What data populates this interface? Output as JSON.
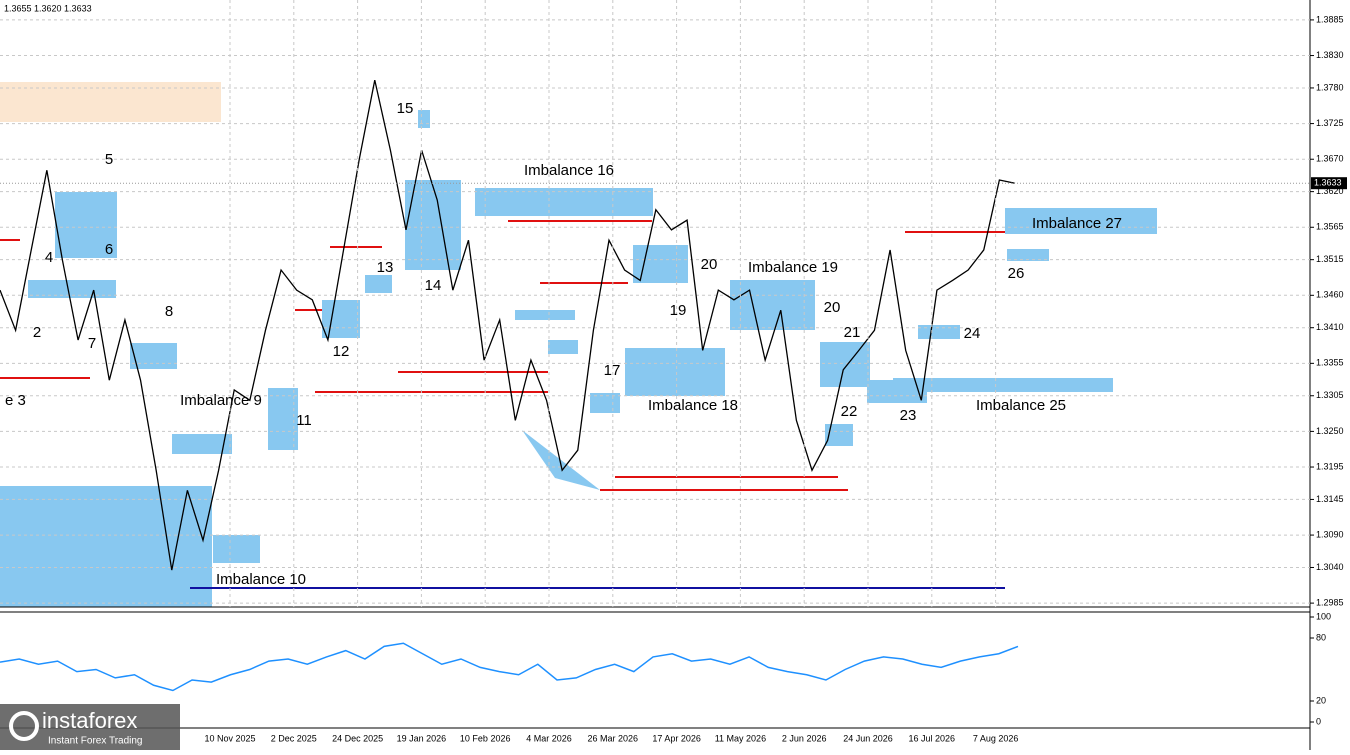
{
  "header": {
    "ohlc": "1.3655 1.3620 1.3633"
  },
  "logo": {
    "name": "instaforex",
    "tagline": "Instant Forex Trading"
  },
  "chart_data": [
    {
      "type": "line",
      "current_price": "1.3633",
      "series": [
        {
          "name": "Price",
          "color": "#000000",
          "values": [
            1.3468,
            1.3406,
            1.353,
            1.3653,
            1.3514,
            1.3391,
            1.3468,
            1.3329,
            1.3422,
            1.3329,
            1.319,
            1.3036,
            1.3159,
            1.3082,
            1.319,
            1.3314,
            1.3298,
            1.3406,
            1.3499,
            1.3468,
            1.3453,
            1.3391,
            1.353,
            1.3669,
            1.3792,
            1.3684,
            1.3561,
            1.3684,
            1.3607,
            1.3468,
            1.3545,
            1.336,
            1.3422,
            1.3267,
            1.336,
            1.3298,
            1.319,
            1.3221,
            1.3406,
            1.3545,
            1.3499,
            1.3483,
            1.3592,
            1.3561,
            1.3576,
            1.3375,
            1.3468,
            1.3453,
            1.3468,
            1.336,
            1.3437,
            1.3267,
            1.319,
            1.3236,
            1.3345,
            1.3375,
            1.3406,
            1.353,
            1.3375,
            1.3298,
            1.3468,
            1.3483,
            1.3499,
            1.353,
            1.3638,
            1.3633
          ]
        }
      ],
      "ylim": [
        1.2979,
        1.3908
      ],
      "yticks": [
        {
          "value": 1.3885,
          "label": "1.3885"
        },
        {
          "value": 1.383,
          "label": "1.3830"
        },
        {
          "value": 1.378,
          "label": "1.3780"
        },
        {
          "value": 1.3725,
          "label": "1.3725"
        },
        {
          "value": 1.367,
          "label": "1.3670"
        },
        {
          "value": 1.362,
          "label": "1.3620"
        },
        {
          "value": 1.3565,
          "label": "1.3565"
        },
        {
          "value": 1.3515,
          "label": "1.3515"
        },
        {
          "value": 1.346,
          "label": "1.3460"
        },
        {
          "value": 1.341,
          "label": "1.3410"
        },
        {
          "value": 1.3355,
          "label": "1.3355"
        },
        {
          "value": 1.3305,
          "label": "1.3305"
        },
        {
          "value": 1.325,
          "label": "1.3250"
        },
        {
          "value": 1.3195,
          "label": "1.3195"
        },
        {
          "value": 1.3145,
          "label": "1.3145"
        },
        {
          "value": 1.309,
          "label": "1.3090"
        },
        {
          "value": 1.304,
          "label": "1.3040"
        },
        {
          "value": 1.2985,
          "label": "1.2985"
        }
      ],
      "grid": true,
      "date_labels": [
        "10 Nov 2025",
        "2 Dec 2025",
        "24 Dec 2025",
        "19 Jan 2026",
        "10 Feb 2026",
        "4 Mar 2026",
        "26 Mar 2026",
        "17 Apr 2026",
        "11 May 2026",
        "2 Jun 2026",
        "24 Jun 2026",
        "16 Jul 2026",
        "7 Aug 2026"
      ],
      "annotations": [
        "5",
        "4",
        "6",
        "2",
        "7",
        "8",
        "e 3",
        "Imbalance 9",
        "11",
        "12",
        "13",
        "14",
        "15",
        "Imbalance 16",
        "17",
        "Imbalance 18",
        "19",
        "20",
        "Imbalance 19",
        "20",
        "21",
        "22",
        "23",
        "24",
        "Imbalance 25",
        "26",
        "Imbalance 27",
        "Imbalance 10"
      ]
    },
    {
      "type": "line",
      "series": [
        {
          "name": "RSI",
          "color": "#1e90ff",
          "values": [
            57,
            60,
            55,
            58,
            48,
            50,
            42,
            45,
            35,
            30,
            40,
            38,
            45,
            50,
            58,
            60,
            55,
            62,
            68,
            60,
            72,
            75,
            65,
            55,
            60,
            52,
            48,
            45,
            55,
            40,
            42,
            50,
            55,
            48,
            62,
            65,
            58,
            60,
            55,
            62,
            52,
            48,
            45,
            40,
            50,
            58,
            62,
            60,
            55,
            52,
            58,
            62,
            65,
            72
          ]
        }
      ],
      "ylim": [
        0,
        100
      ],
      "yticks": [
        100,
        80,
        20,
        0
      ]
    }
  ]
}
